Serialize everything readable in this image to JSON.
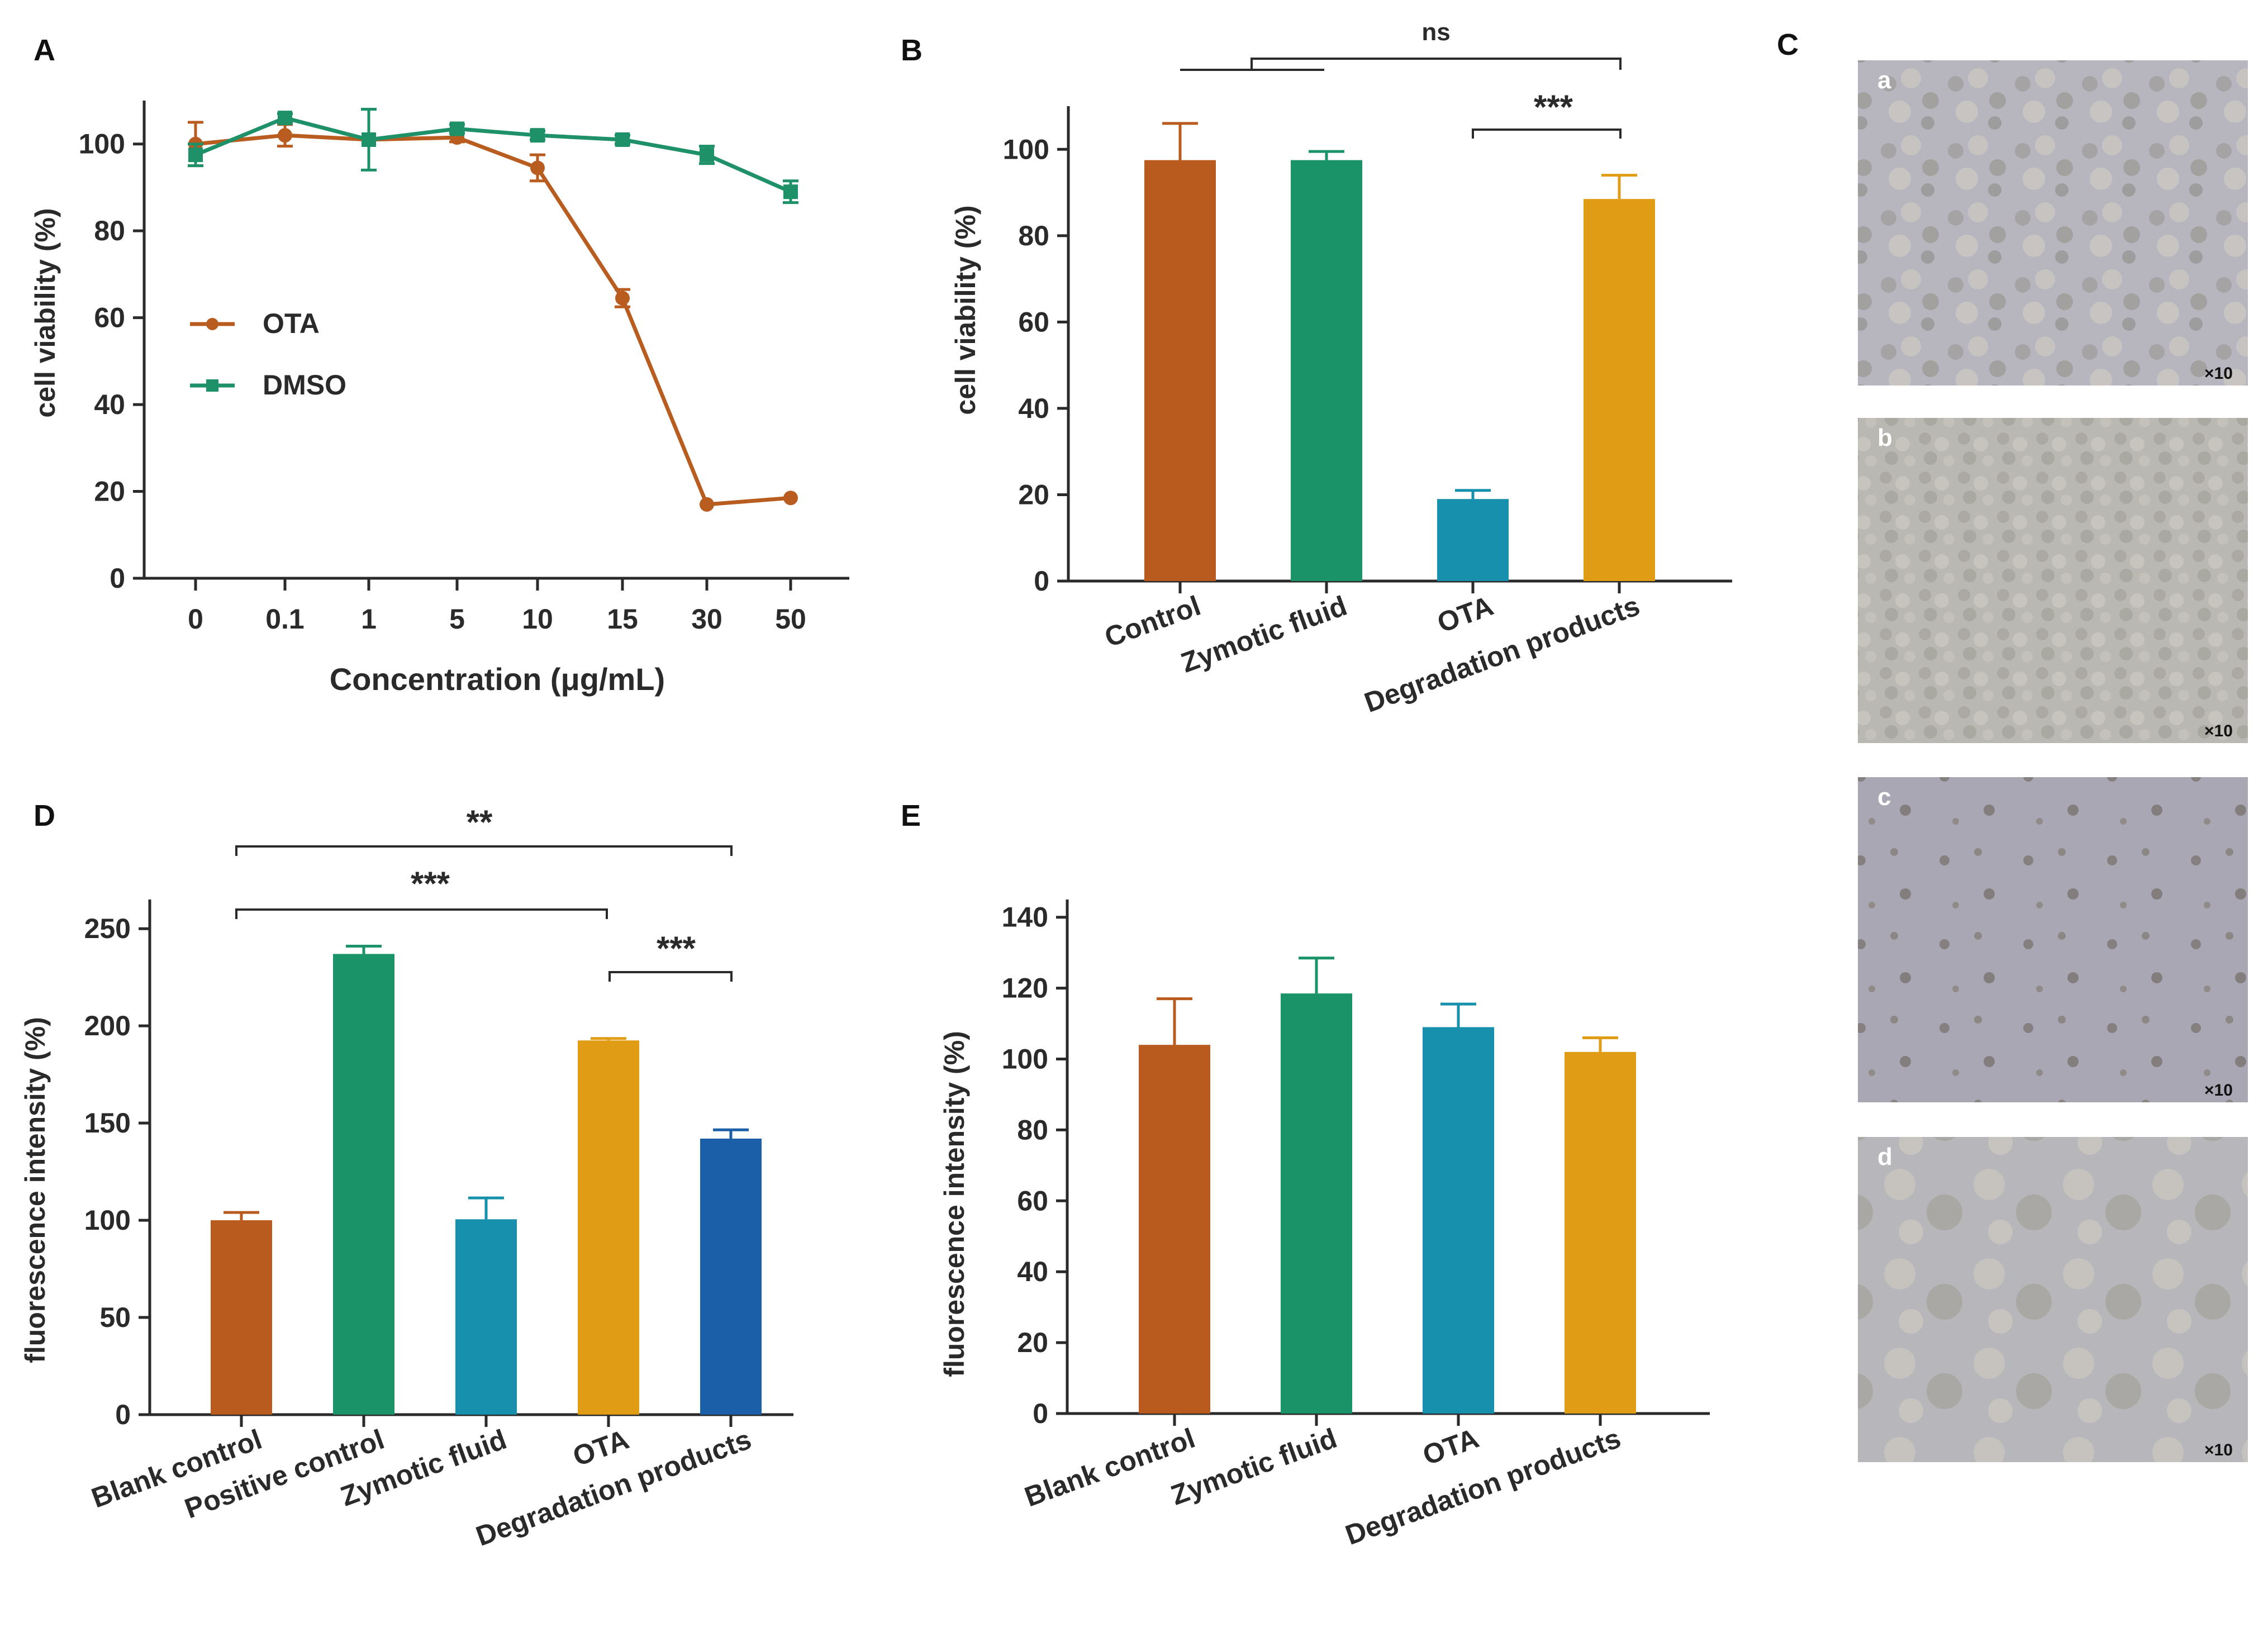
{
  "colors": {
    "ota": "#B85C20",
    "dmso": "#1F9168",
    "control": "#B95A1E",
    "zymotic": "#1A9368",
    "ota_bar": "#1790AE",
    "degradation": "#E19C16",
    "degradation_blue": "#1A5FA8",
    "axis": "#2a2a2a"
  },
  "chart_data": [
    {
      "panel": "A",
      "type": "line",
      "xlabel": "Concentration (μg/mL)",
      "ylabel": "cell viability (%)",
      "categories": [
        "0",
        "0.1",
        "1",
        "5",
        "10",
        "15",
        "30",
        "50"
      ],
      "ylim": [
        0,
        110
      ],
      "yticks": [
        "0",
        "20",
        "40",
        "60",
        "80",
        "100"
      ],
      "legend": "center-left",
      "series": [
        {
          "name": "OTA",
          "values": [
            100,
            102,
            101,
            101.5,
            94.5,
            64.5,
            17,
            18.5
          ],
          "errors": [
            5,
            2.5,
            0,
            1,
            3,
            2,
            0,
            0
          ]
        },
        {
          "name": "DMSO",
          "values": [
            97.5,
            106,
            101,
            103.5,
            102,
            101,
            97.5,
            89
          ],
          "errors": [
            2.5,
            1,
            7,
            1,
            1,
            1,
            2,
            2.5
          ]
        }
      ]
    },
    {
      "panel": "B",
      "type": "bar",
      "ylabel": "cell viability (%)",
      "categories": [
        "Control",
        "Zymotic fluid",
        "OTA",
        "Degradation products"
      ],
      "values": [
        97.5,
        97.5,
        19,
        88.5
      ],
      "errors": [
        8.5,
        2,
        2,
        5.5
      ],
      "ylim": [
        0,
        110
      ],
      "yticks": [
        "0",
        "20",
        "40",
        "60",
        "80",
        "100"
      ],
      "significance": [
        {
          "label": "ns",
          "note": "Control+Zymotic fluid vs Degradation products"
        },
        {
          "label": "***",
          "note": "OTA vs Degradation products"
        }
      ]
    },
    {
      "panel": "D",
      "type": "bar",
      "ylabel": "fluorescence intensity (%)",
      "categories": [
        "Blank control",
        "Positive control",
        "Zymotic fluid",
        "OTA",
        "Degradation products"
      ],
      "values": [
        100,
        237,
        100.5,
        192.5,
        142
      ],
      "errors": [
        4,
        4,
        11,
        1,
        4.5
      ],
      "ylim": [
        0,
        265
      ],
      "yticks": [
        "0",
        "50",
        "100",
        "150",
        "200",
        "250"
      ],
      "significance": [
        {
          "label": "**",
          "note": "Blank control vs Degradation products"
        },
        {
          "label": "***",
          "note": "Blank control vs OTA"
        },
        {
          "label": "***",
          "note": "OTA vs Degradation products"
        }
      ]
    },
    {
      "panel": "E",
      "type": "bar",
      "ylabel": "fluorescence intensity (%)",
      "categories": [
        "Blank control",
        "Zymotic fluid",
        "OTA",
        "Degradation products"
      ],
      "values": [
        104,
        118.5,
        109,
        102
      ],
      "errors": [
        13,
        10,
        6.5,
        4
      ],
      "ylim": [
        0,
        145
      ],
      "yticks": [
        "0",
        "20",
        "40",
        "60",
        "80",
        "100",
        "120",
        "140"
      ]
    }
  ],
  "panels": {
    "A": "A",
    "B": "B",
    "C": "C",
    "D": "D",
    "E": "E"
  },
  "micrographs": {
    "labels": [
      "a",
      "b",
      "c",
      "d"
    ],
    "magnification": "×10"
  }
}
